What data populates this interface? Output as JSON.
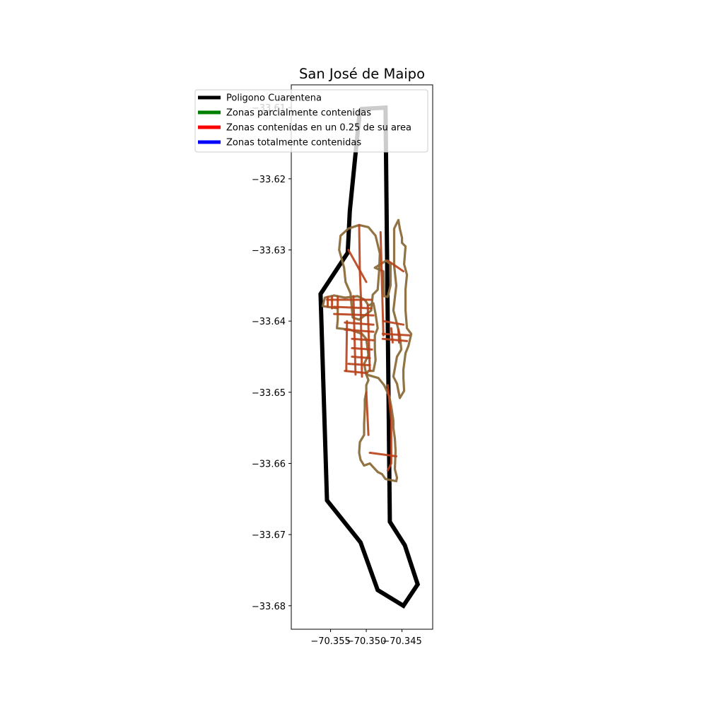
{
  "chart_data": {
    "type": "map",
    "title": "San José de Maipo",
    "xlabel": "",
    "ylabel": "",
    "xlim": [
      -70.3605,
      -70.3407
    ],
    "ylim": [
      -33.6833,
      -33.6068
    ],
    "x_ticks": [
      {
        "value": -70.355,
        "label": "−70.355"
      },
      {
        "value": -70.35,
        "label": "−70.350"
      },
      {
        "value": -70.345,
        "label": "−70.345"
      }
    ],
    "y_ticks": [
      {
        "value": -33.61,
        "label": "−33.61"
      },
      {
        "value": -33.62,
        "label": "−33.62"
      },
      {
        "value": -33.63,
        "label": "−33.63"
      },
      {
        "value": -33.64,
        "label": "−33.64"
      },
      {
        "value": -33.65,
        "label": "−33.65"
      },
      {
        "value": -33.66,
        "label": "−33.66"
      },
      {
        "value": -33.67,
        "label": "−33.67"
      },
      {
        "value": -33.68,
        "label": "−33.68"
      }
    ],
    "grid": false,
    "legend_placement": "top-left",
    "legend": [
      {
        "label": "Poligono Cuarentena",
        "color": "#000000"
      },
      {
        "label": "Zonas parcialmente contenidas",
        "color": "#008000"
      },
      {
        "label": "Zonas contenidas en un 0.25 de su area",
        "color": "#ff0000"
      },
      {
        "label": "Zonas totalmente contenidas",
        "color": "#0000ff"
      }
    ],
    "quarantine_polygon": {
      "color": "#000000",
      "points": [
        [
          -70.3509,
          -33.6102
        ],
        [
          -70.3509,
          -33.6104
        ],
        [
          -70.3523,
          -33.6245
        ],
        [
          -70.3526,
          -33.6304
        ],
        [
          -70.3564,
          -33.6362
        ],
        [
          -70.3555,
          -33.6652
        ],
        [
          -70.3508,
          -33.6711
        ],
        [
          -70.3484,
          -33.6778
        ],
        [
          -70.3448,
          -33.68
        ],
        [
          -70.3428,
          -33.677
        ],
        [
          -70.3446,
          -33.6715
        ],
        [
          -70.3467,
          -33.6682
        ],
        [
          -70.3473,
          -33.61
        ],
        [
          -70.3509,
          -33.6102
        ]
      ]
    },
    "zone_style": {
      "outline_color": "#8b6b3a",
      "road_color": "#b8401a"
    },
    "zone_outlines": [
      [
        [
          -70.3525,
          -33.627
        ],
        [
          -70.351,
          -33.6265
        ],
        [
          -70.3497,
          -33.6268
        ],
        [
          -70.3487,
          -33.628
        ],
        [
          -70.3481,
          -33.6305
        ],
        [
          -70.3482,
          -33.633
        ],
        [
          -70.3484,
          -33.6356
        ],
        [
          -70.3491,
          -33.6363
        ],
        [
          -70.3493,
          -33.6385
        ],
        [
          -70.351,
          -33.6398
        ],
        [
          -70.3519,
          -33.6395
        ],
        [
          -70.3522,
          -33.6361
        ],
        [
          -70.3529,
          -33.6345
        ],
        [
          -70.3531,
          -33.6325
        ],
        [
          -70.3538,
          -33.63
        ],
        [
          -70.3536,
          -33.628
        ],
        [
          -70.3525,
          -33.627
        ]
      ],
      [
        [
          -70.3488,
          -33.6325
        ],
        [
          -70.3472,
          -33.6315
        ],
        [
          -70.3466,
          -33.632
        ],
        [
          -70.3466,
          -33.635
        ],
        [
          -70.347,
          -33.6366
        ],
        [
          -70.3475,
          -33.6365
        ],
        [
          -70.3476,
          -33.633
        ],
        [
          -70.3488,
          -33.6325
        ]
      ],
      [
        [
          -70.3455,
          -33.6258
        ],
        [
          -70.3453,
          -33.627
        ],
        [
          -70.345,
          -33.6283
        ],
        [
          -70.345,
          -33.629
        ],
        [
          -70.3445,
          -33.6295
        ],
        [
          -70.3447,
          -33.632
        ],
        [
          -70.3443,
          -33.6335
        ],
        [
          -70.3445,
          -33.6355
        ],
        [
          -70.3445,
          -33.6385
        ],
        [
          -70.3443,
          -33.641
        ],
        [
          -70.3437,
          -33.6418
        ],
        [
          -70.3441,
          -33.6435
        ],
        [
          -70.3445,
          -33.6445
        ],
        [
          -70.3448,
          -33.6468
        ],
        [
          -70.3448,
          -33.648
        ],
        [
          -70.3447,
          -33.6498
        ],
        [
          -70.3453,
          -33.6508
        ],
        [
          -70.3457,
          -33.6488
        ],
        [
          -70.3462,
          -33.6478
        ],
        [
          -70.3457,
          -33.645
        ],
        [
          -70.3451,
          -33.644
        ],
        [
          -70.3453,
          -33.642
        ],
        [
          -70.3458,
          -33.64
        ],
        [
          -70.3462,
          -33.6385
        ],
        [
          -70.3458,
          -33.635
        ],
        [
          -70.3461,
          -33.6322
        ],
        [
          -70.3461,
          -33.6292
        ],
        [
          -70.3461,
          -33.627
        ],
        [
          -70.3455,
          -33.6258
        ]
      ],
      [
        [
          -70.3545,
          -33.6364
        ],
        [
          -70.3558,
          -33.6367
        ],
        [
          -70.3561,
          -33.6379
        ],
        [
          -70.354,
          -33.6382
        ],
        [
          -70.354,
          -33.6398
        ],
        [
          -70.3541,
          -33.641
        ],
        [
          -70.3523,
          -33.6412
        ],
        [
          -70.3506,
          -33.6418
        ],
        [
          -70.35,
          -33.6425
        ],
        [
          -70.3497,
          -33.6448
        ],
        [
          -70.3503,
          -33.646
        ],
        [
          -70.35,
          -33.6475
        ],
        [
          -70.3497,
          -33.647
        ],
        [
          -70.349,
          -33.647
        ],
        [
          -70.3487,
          -33.6455
        ],
        [
          -70.3488,
          -33.644
        ],
        [
          -70.3488,
          -33.642
        ],
        [
          -70.3484,
          -33.641
        ],
        [
          -70.3487,
          -33.639
        ],
        [
          -70.349,
          -33.6375
        ],
        [
          -70.3497,
          -33.6378
        ],
        [
          -70.3502,
          -33.637
        ],
        [
          -70.3512,
          -33.6365
        ],
        [
          -70.353,
          -33.6367
        ],
        [
          -70.3545,
          -33.6364
        ]
      ],
      [
        [
          -70.35,
          -33.6475
        ],
        [
          -70.3497,
          -33.6483
        ],
        [
          -70.35,
          -33.649
        ],
        [
          -70.35,
          -33.65
        ],
        [
          -70.3502,
          -33.651
        ],
        [
          -70.3502,
          -33.6523
        ],
        [
          -70.3503,
          -33.6545
        ],
        [
          -70.3503,
          -33.656
        ],
        [
          -70.3509,
          -33.657
        ],
        [
          -70.351,
          -33.6585
        ],
        [
          -70.3508,
          -33.6595
        ],
        [
          -70.3503,
          -33.6603
        ],
        [
          -70.3495,
          -33.66
        ],
        [
          -70.3484,
          -33.6612
        ],
        [
          -70.3478,
          -33.6615
        ],
        [
          -70.3473,
          -33.6622
        ],
        [
          -70.3458,
          -33.6625
        ],
        [
          -70.3457,
          -33.662
        ],
        [
          -70.346,
          -33.6608
        ],
        [
          -70.3459,
          -33.6582
        ],
        [
          -70.346,
          -33.6565
        ],
        [
          -70.3462,
          -33.655
        ],
        [
          -70.3462,
          -33.654
        ],
        [
          -70.3465,
          -33.652
        ],
        [
          -70.3468,
          -33.6505
        ],
        [
          -70.3475,
          -33.649
        ],
        [
          -70.3483,
          -33.648
        ],
        [
          -70.349,
          -33.6478
        ],
        [
          -70.35,
          -33.6475
        ]
      ]
    ],
    "roads": [
      [
        [
          -70.351,
          -33.6265
        ],
        [
          -70.3509,
          -33.633
        ],
        [
          -70.3507,
          -33.638
        ]
      ],
      [
        [
          -70.348,
          -33.6275
        ],
        [
          -70.3478,
          -33.635
        ],
        [
          -70.3476,
          -33.642
        ]
      ],
      [
        [
          -70.3525,
          -33.63
        ],
        [
          -70.35,
          -33.6345
        ]
      ],
      [
        [
          -70.347,
          -33.6315
        ],
        [
          -70.3448,
          -33.633
        ]
      ],
      [
        [
          -70.3476,
          -33.64
        ],
        [
          -70.3448,
          -33.6405
        ]
      ],
      [
        [
          -70.3555,
          -33.637
        ],
        [
          -70.3493,
          -33.637
        ]
      ],
      [
        [
          -70.3545,
          -33.638
        ],
        [
          -70.3493,
          -33.6382
        ]
      ],
      [
        [
          -70.3545,
          -33.639
        ],
        [
          -70.349,
          -33.6392
        ]
      ],
      [
        [
          -70.353,
          -33.6402
        ],
        [
          -70.349,
          -33.6405
        ]
      ],
      [
        [
          -70.353,
          -33.6412
        ],
        [
          -70.349,
          -33.6415
        ]
      ],
      [
        [
          -70.352,
          -33.6425
        ],
        [
          -70.349,
          -33.6427
        ]
      ],
      [
        [
          -70.352,
          -33.6438
        ],
        [
          -70.3492,
          -33.644
        ]
      ],
      [
        [
          -70.352,
          -33.645
        ],
        [
          -70.3495,
          -33.6452
        ]
      ],
      [
        [
          -70.3525,
          -33.646
        ],
        [
          -70.3495,
          -33.6462
        ]
      ],
      [
        [
          -70.353,
          -33.647
        ],
        [
          -70.35,
          -33.6473
        ]
      ],
      [
        [
          -70.3518,
          -33.6365
        ],
        [
          -70.3515,
          -33.6475
        ]
      ],
      [
        [
          -70.3508,
          -33.637
        ],
        [
          -70.3506,
          -33.6478
        ]
      ],
      [
        [
          -70.3498,
          -33.6378
        ],
        [
          -70.3495,
          -33.647
        ]
      ],
      [
        [
          -70.3527,
          -33.64
        ],
        [
          -70.3528,
          -33.647
        ]
      ],
      [
        [
          -70.3554,
          -33.6366
        ],
        [
          -70.3554,
          -33.638
        ]
      ],
      [
        [
          -70.3548,
          -33.6366
        ],
        [
          -70.3548,
          -33.6382
        ]
      ],
      [
        [
          -70.354,
          -33.6366
        ],
        [
          -70.354,
          -33.6382
        ]
      ],
      [
        [
          -70.3477,
          -33.6418
        ],
        [
          -70.344,
          -33.642
        ]
      ],
      [
        [
          -70.3477,
          -33.6425
        ],
        [
          -70.3443,
          -33.6428
        ]
      ],
      [
        [
          -70.3465,
          -33.641
        ],
        [
          -70.3463,
          -33.643
        ]
      ],
      [
        [
          -70.3455,
          -33.6412
        ],
        [
          -70.3454,
          -33.643
        ]
      ],
      [
        [
          -70.347,
          -33.649
        ],
        [
          -70.3465,
          -33.654
        ],
        [
          -70.3465,
          -33.66
        ],
        [
          -70.347,
          -33.661
        ]
      ],
      [
        [
          -70.3495,
          -33.6585
        ],
        [
          -70.3458,
          -33.659
        ]
      ],
      [
        [
          -70.35,
          -33.65
        ],
        [
          -70.3497,
          -33.656
        ]
      ]
    ]
  }
}
